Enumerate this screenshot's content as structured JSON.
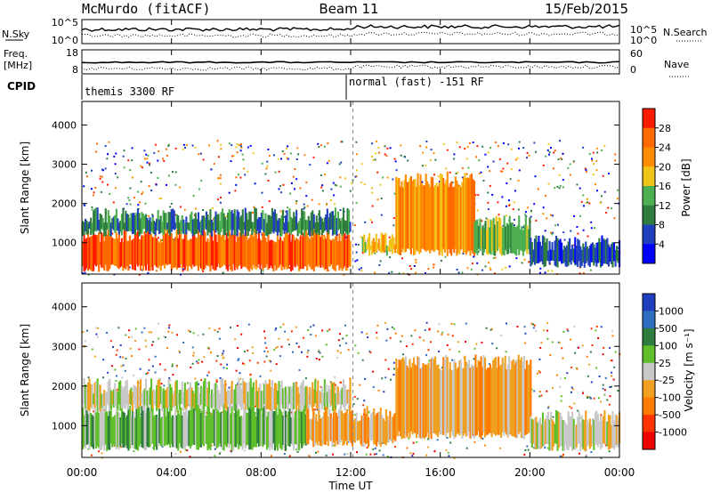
{
  "header": {
    "station": "McMurdo (fitACF)",
    "beam": "Beam 11",
    "date": "15/Feb/2015"
  },
  "top_panels": {
    "nsky_label": "N.Sky",
    "nsearch_label": "N.Search",
    "freq_label_1": "Freq.",
    "freq_label_2": "[MHz]",
    "nave_label": "Nave",
    "cpid_label": "CPID",
    "left_ticks": {
      "n_hi": "10^5",
      "n_lo": "10^0",
      "f_hi": "18",
      "f_lo": "8"
    },
    "right_ticks": {
      "n_hi": "10^5",
      "n_lo": "10^0",
      "nave_hi": "60",
      "nave_lo": "0"
    },
    "cpid_segments": [
      {
        "label": "themis 3300 RF",
        "start_hour": 0,
        "end_hour": 12.1
      },
      {
        "label": "normal (fast) -151 RF",
        "start_hour": 12.1,
        "end_hour": 24
      }
    ]
  },
  "x_axis": {
    "label": "Time UT",
    "ticks": [
      "00:00",
      "04:00",
      "08:00",
      "12:00",
      "16:00",
      "20:00",
      "00:00"
    ]
  },
  "panels": [
    {
      "id": "power",
      "ylabel": "Slant Range [km]",
      "yticks": [
        "1000",
        "2000",
        "3000",
        "4000"
      ],
      "colorbar_label": "Power [dB]",
      "colorbar_ticks": [
        "4",
        "8",
        "12",
        "16",
        "20",
        "24",
        "28"
      ],
      "colors": [
        "#0000ff",
        "#1f3fbf",
        "#2e7d3e",
        "#4caf50",
        "#f0c419",
        "#ff8c00",
        "#ff6a00",
        "#ff1a00"
      ]
    },
    {
      "id": "velocity",
      "ylabel": "Slant Range [km]",
      "yticks": [
        "1000",
        "2000",
        "3000",
        "4000"
      ],
      "colorbar_label": "Velocity [m s⁻¹]",
      "colorbar_ticks": [
        "1000",
        "500",
        "100",
        "25",
        "-25",
        "-100",
        "-500",
        "-1000"
      ],
      "colors": [
        "#1f3fbf",
        "#2f6fbf",
        "#2e7d3e",
        "#5fbf2a",
        "#c8c8c8",
        "#f0a020",
        "#ff7a00",
        "#ff3300",
        "#ee0000"
      ]
    }
  ],
  "chart_data": [
    {
      "type": "heatmap",
      "title": "Power [dB]",
      "xlabel": "Time UT",
      "ylabel": "Slant Range [km]",
      "xlim": [
        0,
        24
      ],
      "ylim": [
        200,
        4600
      ],
      "clim": [
        0,
        30
      ],
      "bands": [
        {
          "start": 0,
          "end": 12,
          "r_lo": 300,
          "r_hi": 1200,
          "value": 26
        },
        {
          "start": 0,
          "end": 12,
          "r_lo": 1200,
          "r_hi": 1700,
          "value": 10
        },
        {
          "start": 12.5,
          "end": 14,
          "r_lo": 700,
          "r_hi": 1100,
          "value": 18
        },
        {
          "start": 14,
          "end": 17.5,
          "r_lo": 700,
          "r_hi": 2600,
          "value": 22
        },
        {
          "start": 17.5,
          "end": 20,
          "r_lo": 700,
          "r_hi": 1500,
          "value": 14
        },
        {
          "start": 20,
          "end": 24,
          "r_lo": 400,
          "r_hi": 1000,
          "value": 6
        }
      ]
    },
    {
      "type": "heatmap",
      "title": "Velocity [m s-1]",
      "xlabel": "Time UT",
      "ylabel": "Slant Range [km]",
      "xlim": [
        0,
        24
      ],
      "ylim": [
        200,
        4600
      ],
      "clim": [
        -1000,
        1000
      ],
      "bands": [
        {
          "start": 0,
          "end": 10,
          "r_lo": 400,
          "r_hi": 1400,
          "value": 120
        },
        {
          "start": 0,
          "end": 12,
          "r_lo": 1400,
          "r_hi": 2000,
          "value": 0
        },
        {
          "start": 10,
          "end": 14,
          "r_lo": 500,
          "r_hi": 1300,
          "value": -120
        },
        {
          "start": 14,
          "end": 20,
          "r_lo": 700,
          "r_hi": 2600,
          "value": -300
        },
        {
          "start": 20,
          "end": 24,
          "r_lo": 400,
          "r_hi": 1200,
          "value": 40
        }
      ]
    }
  ]
}
